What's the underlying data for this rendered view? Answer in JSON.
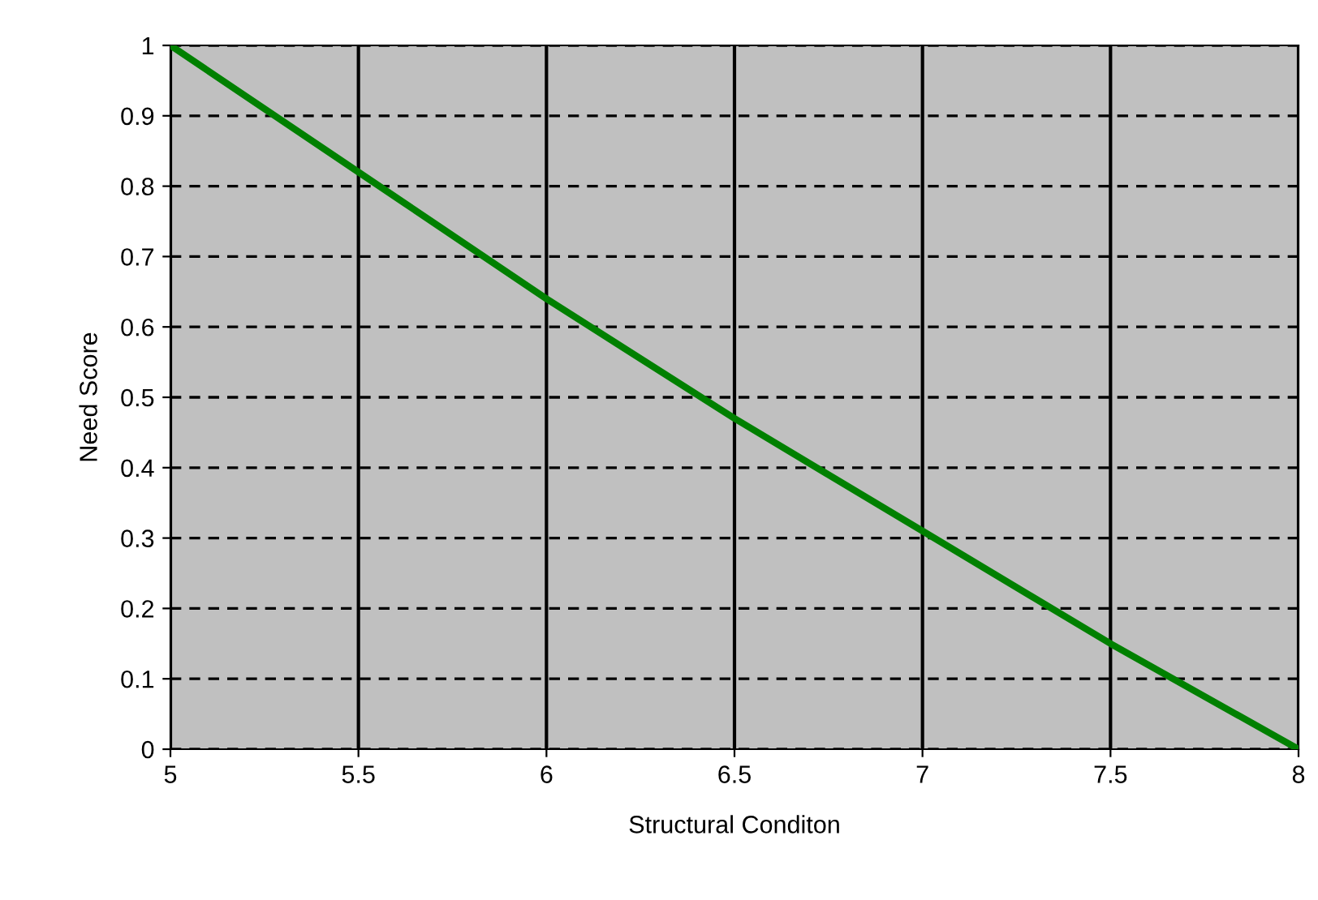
{
  "chart_data": {
    "type": "line",
    "xlabel": "Structural Conditon",
    "ylabel": "Need Score",
    "x": [
      5,
      5.5,
      6,
      6.5,
      7,
      7.5,
      8
    ],
    "series": [
      {
        "color": "#008000",
        "values": [
          1,
          0.82,
          0.64,
          0.47,
          0.31,
          0.15,
          0
        ]
      }
    ],
    "xlim": [
      5,
      8
    ],
    "xticks": [
      5,
      5.5,
      6,
      6.5,
      7,
      7.5,
      8
    ],
    "ylim": [
      0,
      1
    ],
    "yticks": [
      0,
      0.1,
      0.2,
      0.3,
      0.4,
      0.5,
      0.6,
      0.7,
      0.8,
      0.9,
      1
    ],
    "grid": true,
    "legend": false
  }
}
